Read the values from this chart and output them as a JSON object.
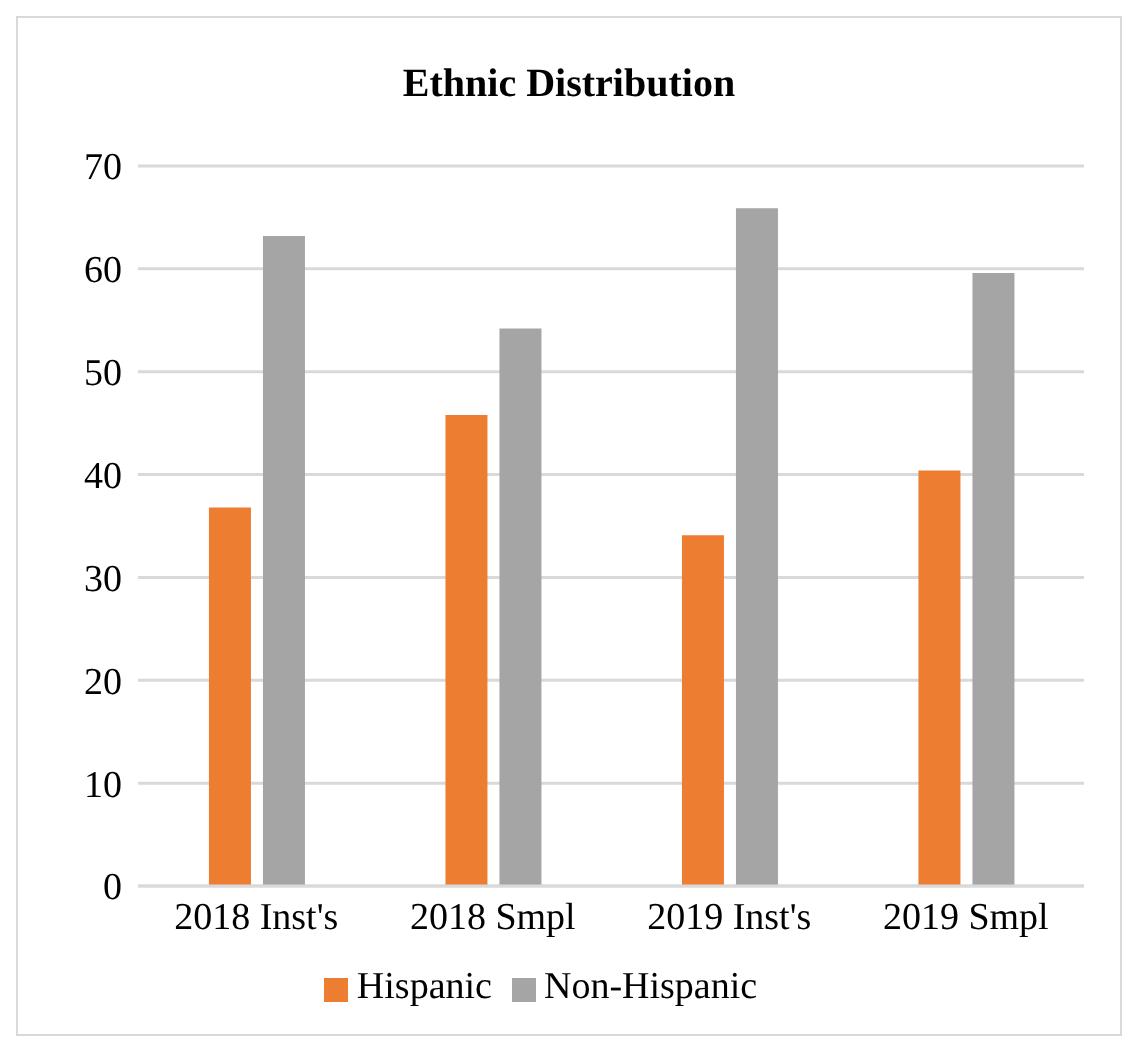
{
  "chart_data": {
    "type": "bar",
    "title": "Ethnic Distribution",
    "categories": [
      "2018 Inst's",
      "2018 Smpl",
      "2019 Inst's",
      "2019 Smpl"
    ],
    "series": [
      {
        "name": "Hispanic",
        "color": "#ed7d31",
        "values": [
          36.8,
          45.8,
          34.1,
          40.4
        ]
      },
      {
        "name": "Non-Hispanic",
        "color": "#a5a5a5",
        "values": [
          63.2,
          54.2,
          65.9,
          59.6
        ]
      }
    ],
    "ylim": [
      0,
      70
    ],
    "yticks": [
      0,
      10,
      20,
      30,
      40,
      50,
      60,
      70
    ],
    "grid": "y",
    "legend": "bottom"
  }
}
